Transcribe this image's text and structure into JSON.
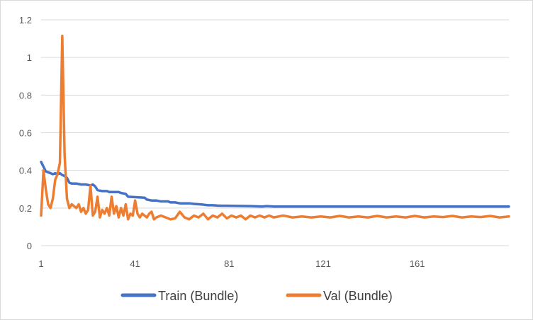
{
  "chart_data": {
    "type": "line",
    "title": "",
    "xlabel": "",
    "ylabel": "",
    "ylim": [
      0,
      1.2
    ],
    "y_ticks": [
      "0",
      "0.2",
      "0.4",
      "0.6",
      "0.8",
      "1",
      "1.2"
    ],
    "y_tick_values": [
      0,
      0.2,
      0.4,
      0.6,
      0.8,
      1.0,
      1.2
    ],
    "x_range": [
      1,
      200
    ],
    "x_ticks": [
      "1",
      "41",
      "81",
      "121",
      "161"
    ],
    "x_tick_values": [
      1,
      41,
      81,
      121,
      161
    ],
    "grid": "horizontal",
    "legend_position": "bottom",
    "series": [
      {
        "name": "Train (Bundle)",
        "color": "#4472C4",
        "points": [
          [
            1,
            0.445
          ],
          [
            2,
            0.42
          ],
          [
            3,
            0.395
          ],
          [
            4,
            0.39
          ],
          [
            5,
            0.385
          ],
          [
            6,
            0.38
          ],
          [
            7,
            0.385
          ],
          [
            8,
            0.38
          ],
          [
            9,
            0.385
          ],
          [
            10,
            0.375
          ],
          [
            11,
            0.37
          ],
          [
            12,
            0.36
          ],
          [
            13,
            0.335
          ],
          [
            14,
            0.33
          ],
          [
            16,
            0.33
          ],
          [
            18,
            0.325
          ],
          [
            20,
            0.325
          ],
          [
            22,
            0.32
          ],
          [
            23,
            0.325
          ],
          [
            24,
            0.315
          ],
          [
            25,
            0.295
          ],
          [
            27,
            0.29
          ],
          [
            29,
            0.29
          ],
          [
            30,
            0.285
          ],
          [
            34,
            0.285
          ],
          [
            35,
            0.28
          ],
          [
            37,
            0.275
          ],
          [
            38,
            0.26
          ],
          [
            45,
            0.255
          ],
          [
            46,
            0.245
          ],
          [
            48,
            0.24
          ],
          [
            50,
            0.24
          ],
          [
            52,
            0.235
          ],
          [
            55,
            0.235
          ],
          [
            56,
            0.23
          ],
          [
            58,
            0.23
          ],
          [
            60,
            0.225
          ],
          [
            64,
            0.225
          ],
          [
            66,
            0.222
          ],
          [
            68,
            0.22
          ],
          [
            70,
            0.218
          ],
          [
            72,
            0.215
          ],
          [
            74,
            0.215
          ],
          [
            76,
            0.213
          ],
          [
            78,
            0.212
          ],
          [
            80,
            0.212
          ],
          [
            85,
            0.211
          ],
          [
            90,
            0.21
          ],
          [
            95,
            0.208
          ],
          [
            97,
            0.21
          ],
          [
            100,
            0.208
          ],
          [
            110,
            0.208
          ],
          [
            120,
            0.208
          ],
          [
            140,
            0.208
          ],
          [
            160,
            0.208
          ],
          [
            180,
            0.208
          ],
          [
            200,
            0.208
          ]
        ]
      },
      {
        "name": "Val (Bundle)",
        "color": "#ED7D31",
        "points": [
          [
            1,
            0.16
          ],
          [
            2,
            0.4
          ],
          [
            3,
            0.3
          ],
          [
            4,
            0.22
          ],
          [
            5,
            0.2
          ],
          [
            6,
            0.25
          ],
          [
            7,
            0.35
          ],
          [
            8,
            0.38
          ],
          [
            9,
            0.44
          ],
          [
            10,
            1.115
          ],
          [
            11,
            0.48
          ],
          [
            12,
            0.25
          ],
          [
            13,
            0.2
          ],
          [
            14,
            0.22
          ],
          [
            15,
            0.21
          ],
          [
            16,
            0.2
          ],
          [
            17,
            0.22
          ],
          [
            18,
            0.18
          ],
          [
            19,
            0.2
          ],
          [
            20,
            0.17
          ],
          [
            21,
            0.19
          ],
          [
            22,
            0.32
          ],
          [
            23,
            0.16
          ],
          [
            24,
            0.18
          ],
          [
            25,
            0.26
          ],
          [
            26,
            0.15
          ],
          [
            27,
            0.19
          ],
          [
            28,
            0.17
          ],
          [
            29,
            0.2
          ],
          [
            30,
            0.16
          ],
          [
            31,
            0.26
          ],
          [
            32,
            0.17
          ],
          [
            33,
            0.21
          ],
          [
            34,
            0.15
          ],
          [
            35,
            0.2
          ],
          [
            36,
            0.16
          ],
          [
            37,
            0.22
          ],
          [
            38,
            0.14
          ],
          [
            39,
            0.17
          ],
          [
            40,
            0.16
          ],
          [
            41,
            0.24
          ],
          [
            42,
            0.17
          ],
          [
            43,
            0.15
          ],
          [
            44,
            0.17
          ],
          [
            45,
            0.16
          ],
          [
            46,
            0.15
          ],
          [
            47,
            0.17
          ],
          [
            48,
            0.18
          ],
          [
            49,
            0.14
          ],
          [
            50,
            0.15
          ],
          [
            52,
            0.16
          ],
          [
            54,
            0.15
          ],
          [
            56,
            0.14
          ],
          [
            58,
            0.145
          ],
          [
            60,
            0.18
          ],
          [
            62,
            0.15
          ],
          [
            64,
            0.14
          ],
          [
            66,
            0.16
          ],
          [
            68,
            0.15
          ],
          [
            70,
            0.17
          ],
          [
            72,
            0.14
          ],
          [
            74,
            0.16
          ],
          [
            76,
            0.15
          ],
          [
            78,
            0.17
          ],
          [
            80,
            0.145
          ],
          [
            82,
            0.16
          ],
          [
            84,
            0.15
          ],
          [
            86,
            0.16
          ],
          [
            88,
            0.14
          ],
          [
            90,
            0.16
          ],
          [
            92,
            0.15
          ],
          [
            94,
            0.16
          ],
          [
            96,
            0.15
          ],
          [
            98,
            0.16
          ],
          [
            100,
            0.15
          ],
          [
            104,
            0.16
          ],
          [
            108,
            0.15
          ],
          [
            112,
            0.155
          ],
          [
            116,
            0.15
          ],
          [
            120,
            0.155
          ],
          [
            124,
            0.15
          ],
          [
            128,
            0.158
          ],
          [
            132,
            0.15
          ],
          [
            136,
            0.155
          ],
          [
            140,
            0.15
          ],
          [
            144,
            0.158
          ],
          [
            148,
            0.15
          ],
          [
            152,
            0.155
          ],
          [
            156,
            0.15
          ],
          [
            160,
            0.158
          ],
          [
            164,
            0.15
          ],
          [
            168,
            0.155
          ],
          [
            172,
            0.152
          ],
          [
            176,
            0.158
          ],
          [
            180,
            0.15
          ],
          [
            184,
            0.155
          ],
          [
            188,
            0.152
          ],
          [
            192,
            0.158
          ],
          [
            196,
            0.15
          ],
          [
            200,
            0.155
          ]
        ]
      }
    ]
  }
}
